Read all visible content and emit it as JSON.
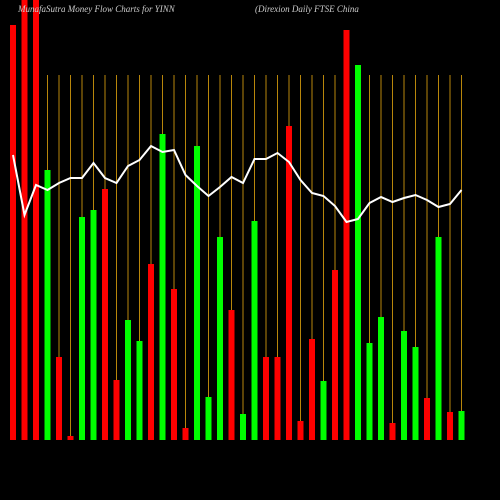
{
  "chart_data": {
    "type": "bar",
    "title": "MunafaSutra  Money Flow  Charts for YINN",
    "subtitle": "(Direxion  Daily FTSE China",
    "categories": [
      null,
      null,
      null,
      null,
      null,
      null,
      null,
      null,
      null,
      null,
      null,
      null,
      null,
      null,
      null,
      null,
      null,
      null,
      null,
      null,
      null,
      null,
      null,
      null,
      null,
      null,
      null,
      null,
      null,
      null,
      null,
      null,
      null,
      null,
      null,
      null,
      null,
      null,
      null,
      null
    ],
    "values": [
      415,
      440,
      440,
      270,
      83,
      4,
      223,
      230,
      251,
      60,
      120,
      99,
      176,
      306,
      151,
      12,
      294,
      43,
      203,
      130,
      26,
      219,
      83,
      83,
      314,
      19,
      101,
      59,
      170,
      410,
      375,
      97,
      123,
      17,
      109,
      93,
      42,
      203,
      28,
      29
    ],
    "colors": [
      "#ff0000",
      "#ff0000",
      "#ff0000",
      "#00ff00",
      "#ff0000",
      "#ff0000",
      "#00ff00",
      "#00ff00",
      "#ff0000",
      "#ff0000",
      "#00ff00",
      "#00ff00",
      "#ff0000",
      "#00ff00",
      "#ff0000",
      "#ff0000",
      "#00ff00",
      "#00ff00",
      "#00ff00",
      "#ff0000",
      "#00ff00",
      "#00ff00",
      "#ff0000",
      "#ff0000",
      "#ff0000",
      "#ff0000",
      "#ff0000",
      "#00ff00",
      "#ff0000",
      "#ff0000",
      "#00ff00",
      "#00ff00",
      "#00ff00",
      "#ff0000",
      "#00ff00",
      "#00ff00",
      "#ff0000",
      "#00ff00",
      "#ff0000",
      "#00ff00"
    ],
    "line_values": [
      285,
      225,
      255,
      250,
      257,
      262,
      262,
      277,
      262,
      257,
      274,
      280,
      294,
      288,
      290,
      265,
      254,
      244,
      253,
      263,
      257,
      281,
      281,
      287,
      278,
      260,
      247,
      244,
      234,
      218,
      221,
      237,
      243,
      238,
      242,
      245,
      240,
      233,
      236,
      250
    ],
    "line_color": "#ffffff",
    "category_line_color": "#b8860b",
    "ylim": [
      0,
      440
    ]
  }
}
